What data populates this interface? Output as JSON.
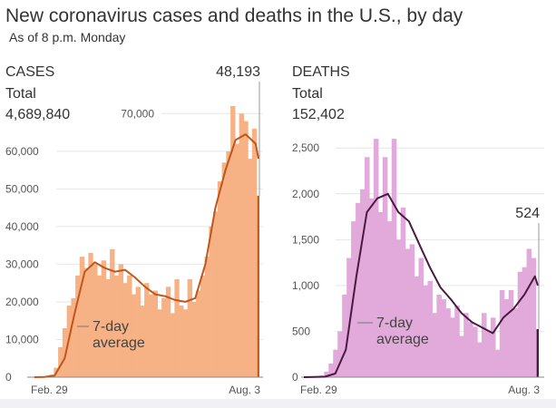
{
  "title": "New coronavirus cases and deaths in the U.S., by day",
  "subtitle": "As of 8 p.m. Monday",
  "chart_data": [
    {
      "type": "bar",
      "heading": "CASES",
      "total_label": "Total",
      "total_value": "4,689,840",
      "last_value_label": "48,193",
      "x_start": "Feb. 29",
      "x_end": "Aug. 3",
      "xticks": [
        "Feb. 29",
        "Aug. 3"
      ],
      "ylim": [
        0,
        72000
      ],
      "yticks": [
        0,
        10000,
        20000,
        30000,
        40000,
        50000,
        60000,
        70000
      ],
      "ytick_labels": [
        "0",
        "10,000",
        "20,000",
        "30,000",
        "40,000",
        "50,000",
        "60,000",
        "70,000"
      ],
      "grid": true,
      "bar_color": "#f6b184",
      "line_color": "#c0561b",
      "highlight_color": "#c85a1a",
      "daily_values": [
        0,
        10,
        50,
        200,
        700,
        2500,
        8000,
        13000,
        19000,
        21000,
        27000,
        32000,
        29000,
        33000,
        30000,
        27000,
        31000,
        26000,
        34000,
        27000,
        30000,
        25000,
        27000,
        22000,
        24000,
        19000,
        25000,
        22000,
        23000,
        18000,
        21000,
        24000,
        17000,
        26000,
        19000,
        18000,
        26000,
        20000,
        23000,
        27000,
        32000,
        40000,
        44000,
        52000,
        57000,
        60000,
        72000,
        62000,
        70000,
        68000,
        58000,
        66000,
        48193
      ],
      "average_label": [
        "7-day",
        "average"
      ],
      "average_values": [
        0,
        50,
        400,
        5000,
        17000,
        28000,
        30500,
        29000,
        28000,
        28500,
        26500,
        24000,
        22000,
        21500,
        20500,
        20000,
        21000,
        30000,
        45000,
        55000,
        63000,
        64500,
        62000,
        58000
      ]
    },
    {
      "type": "bar",
      "heading": "DEATHS",
      "total_label": "Total",
      "total_value": "152,402",
      "last_value_label": "524",
      "x_start": "Feb. 29",
      "x_end": "Aug. 3",
      "xticks": [
        "Feb. 29",
        "Aug. 3"
      ],
      "ylim": [
        0,
        2700
      ],
      "yticks": [
        0,
        500,
        1000,
        1500,
        2000,
        2500
      ],
      "ytick_labels": [
        "0",
        "500",
        "1,000",
        "1,500",
        "2,000",
        "2,500"
      ],
      "grid": true,
      "bar_color": "#e2aadb",
      "line_color": "#4a1942",
      "highlight_color": "#4a1942",
      "daily_values": [
        0,
        2,
        5,
        10,
        20,
        60,
        150,
        300,
        500,
        900,
        1300,
        1700,
        1900,
        2050,
        2400,
        1950,
        2600,
        1800,
        2400,
        1700,
        2600,
        1500,
        1850,
        1400,
        1450,
        1100,
        1300,
        1000,
        1050,
        700,
        900,
        850,
        750,
        650,
        780,
        450,
        700,
        600,
        550,
        380,
        700,
        500,
        650,
        300,
        950,
        850,
        950,
        750,
        1150,
        1200,
        1400,
        1300,
        524
      ],
      "average_label": [
        "7-day",
        "average"
      ],
      "average_values": [
        0,
        2,
        5,
        40,
        300,
        1100,
        1800,
        1950,
        2000,
        1800,
        1700,
        1450,
        1200,
        980,
        850,
        700,
        600,
        540,
        480,
        650,
        750,
        900,
        1100,
        1000
      ]
    }
  ]
}
